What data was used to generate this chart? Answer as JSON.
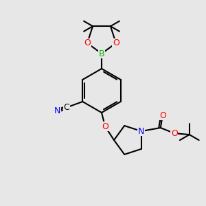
{
  "background_color": [
    0.906,
    0.906,
    0.906
  ],
  "bond_color": "#000000",
  "bond_width": 1.5,
  "colors": {
    "B": "#00bb00",
    "N": "#0000ff",
    "O": "#ff0000",
    "C": "#000000"
  },
  "font_size_atom": 9,
  "font_size_methyl": 7.5
}
